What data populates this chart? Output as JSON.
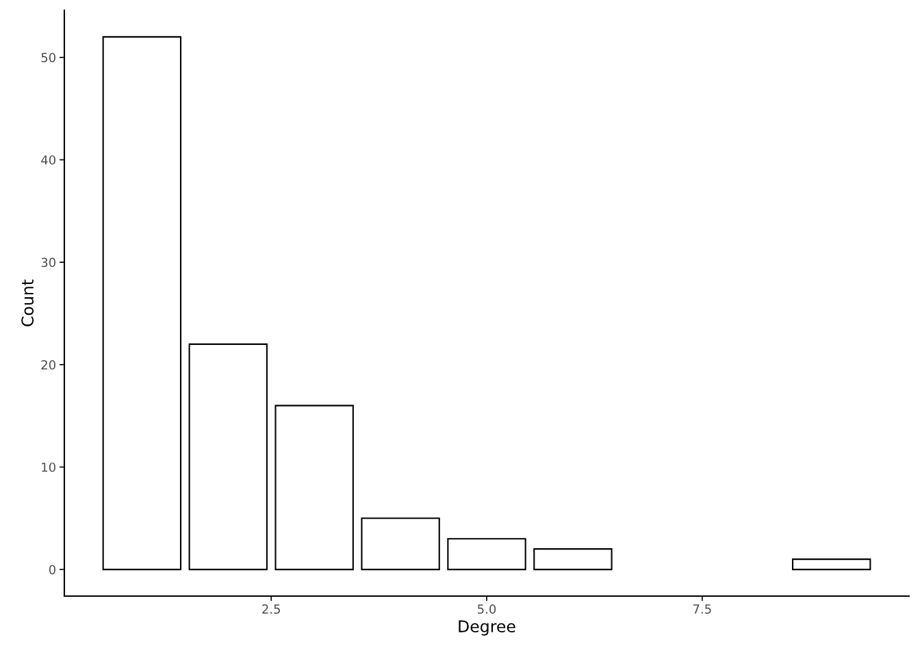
{
  "chart_data": {
    "type": "bar",
    "xlabel": "Degree",
    "ylabel": "Count",
    "x": [
      1,
      2,
      3,
      4,
      5,
      6,
      9
    ],
    "values": [
      52,
      22,
      16,
      5,
      3,
      2,
      1
    ],
    "color": "#ffffff",
    "xlim": [
      0.1,
      9.9
    ],
    "xticks": [
      2.5,
      {
        "value": 5.0,
        "label": "5.0"
      },
      7.5
    ],
    "ylim": [
      -2.6,
      54.6
    ],
    "yticks": [
      0,
      10,
      20,
      30,
      40,
      50
    ],
    "grid": false
  }
}
